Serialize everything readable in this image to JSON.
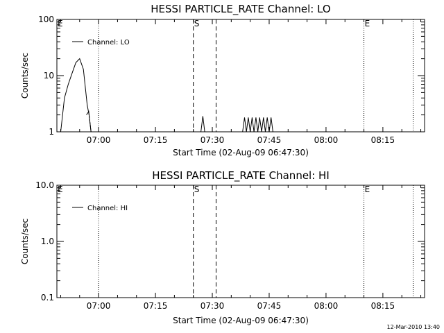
{
  "footer": {
    "timestamp": "12-Mar-2010 13:40"
  },
  "chart_data": [
    {
      "type": "line",
      "title": "HESSI PARTICLE_RATE Channel: LO",
      "xlabel": "Start Time (02-Aug-09 06:47:30)",
      "ylabel": "Counts/sec",
      "yscale": "log",
      "ylim": [
        1,
        100
      ],
      "xlim": [
        "06:49",
        "08:26"
      ],
      "x_ticks": [
        "07:00",
        "07:15",
        "07:30",
        "07:45",
        "08:00",
        "08:15"
      ],
      "y_ticks": [
        "1",
        "10",
        "100"
      ],
      "legend": {
        "placement": "top-left",
        "entries": [
          "Channel: LO"
        ]
      },
      "markers": [
        {
          "label": "E",
          "time": "06:49",
          "style": "none"
        },
        {
          "label": "",
          "time": "07:00",
          "style": "dotted"
        },
        {
          "label": "S",
          "time": "07:25",
          "style": "dashed"
        },
        {
          "label": "",
          "time": "07:31",
          "style": "dashed"
        },
        {
          "label": "E",
          "time": "08:10",
          "style": "dotted"
        },
        {
          "label": "",
          "time": "08:23",
          "style": "dotted"
        }
      ],
      "series": [
        {
          "name": "Channel: LO",
          "segments": [
            {
              "x": [
                "06:50",
                "06:51",
                "06:52",
                "06:53",
                "06:54",
                "06:55",
                "06:56",
                "06:57",
                "06:57.5",
                "06:58"
              ],
              "y": [
                1,
                4,
                7,
                11,
                17,
                20,
                13,
                3,
                2,
                1
              ]
            },
            {
              "x": [
                "06:56.8",
                "06:57.4",
                "06:58"
              ],
              "y": [
                2,
                2.3,
                1
              ]
            },
            {
              "x": [
                "07:27",
                "07:27.5",
                "07:28"
              ],
              "y": [
                1,
                1.9,
                1
              ]
            },
            {
              "x": [
                "07:38",
                "07:38.5",
                "07:39",
                "07:39.5",
                "07:40",
                "07:40.5",
                "07:41",
                "07:41.5",
                "07:42",
                "07:42.5",
                "07:43",
                "07:43.5",
                "07:44",
                "07:44.5",
                "07:45",
                "07:45.5",
                "07:46"
              ],
              "y": [
                1,
                1.8,
                1,
                1.8,
                1,
                1.8,
                1,
                1.8,
                1,
                1.8,
                1,
                1.8,
                1,
                1.8,
                1,
                1.8,
                1
              ]
            }
          ]
        }
      ]
    },
    {
      "type": "line",
      "title": "HESSI PARTICLE_RATE Channel: HI",
      "xlabel": "Start Time (02-Aug-09 06:47:30)",
      "ylabel": "Counts/sec",
      "yscale": "log",
      "ylim": [
        0.1,
        10.0
      ],
      "xlim": [
        "06:49",
        "08:26"
      ],
      "x_ticks": [
        "07:00",
        "07:15",
        "07:30",
        "07:45",
        "08:00",
        "08:15"
      ],
      "y_ticks": [
        "0.1",
        "1.0",
        "10.0"
      ],
      "legend": {
        "placement": "top-left",
        "entries": [
          "Channel: HI"
        ]
      },
      "markers": [
        {
          "label": "E",
          "time": "06:49",
          "style": "none"
        },
        {
          "label": "",
          "time": "07:00",
          "style": "dotted"
        },
        {
          "label": "S",
          "time": "07:25",
          "style": "dashed"
        },
        {
          "label": "",
          "time": "07:31",
          "style": "dashed"
        },
        {
          "label": "E",
          "time": "08:10",
          "style": "dotted"
        },
        {
          "label": "",
          "time": "08:23",
          "style": "dotted"
        }
      ],
      "series": [
        {
          "name": "Channel: HI",
          "segments": []
        }
      ]
    }
  ]
}
